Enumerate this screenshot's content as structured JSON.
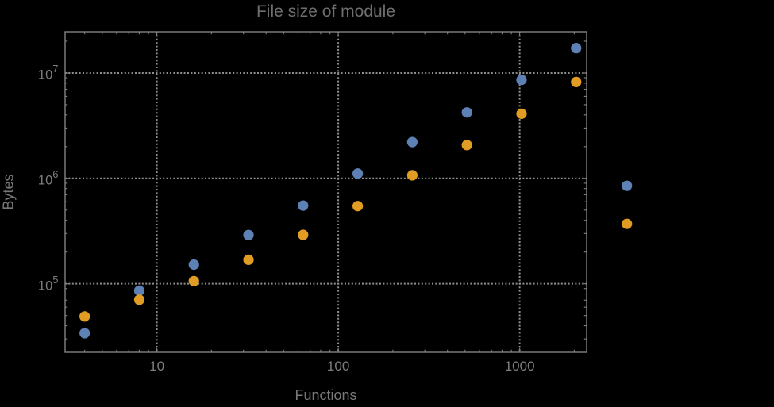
{
  "title": "File size of module",
  "axes": {
    "x_label": "Functions",
    "y_label": "Bytes"
  },
  "style": {
    "background": "#000000",
    "frame_color": "#828282",
    "grid_color": "#8e8e8e",
    "tick_label_color": "#7c7c7c",
    "title_color": "#6f6f6f",
    "axis_label_color": "#787878",
    "series_blue": "#5E81B5",
    "series_orange": "#E19C24"
  },
  "chart_data": {
    "type": "scatter",
    "title": "File size of module",
    "xlabel": "Functions",
    "ylabel": "Bytes",
    "x_scale": "log",
    "y_scale": "log",
    "grid": "dotted",
    "legend": "none",
    "xlim": [
      3.12,
      2340
    ],
    "ylim": [
      22400,
      24600000
    ],
    "x_ticks": [
      10,
      100,
      1000
    ],
    "y_ticks": [
      100000,
      1000000,
      10000000
    ],
    "x": [
      4,
      8,
      16,
      32,
      64,
      128,
      256,
      512,
      1024,
      2048,
      3900
    ],
    "series": [
      {
        "name": "series-1",
        "color": "#5E81B5",
        "marker": "circle",
        "values": [
          34000,
          86000,
          152000,
          290000,
          552000,
          1110000,
          2210000,
          4220000,
          8600000,
          17200000,
          850000
        ]
      },
      {
        "name": "series-2",
        "color": "#E19C24",
        "marker": "circle",
        "values": [
          49000,
          70500,
          106000,
          169000,
          291000,
          546000,
          1070000,
          2070000,
          4100000,
          8200000,
          370000
        ]
      }
    ]
  }
}
